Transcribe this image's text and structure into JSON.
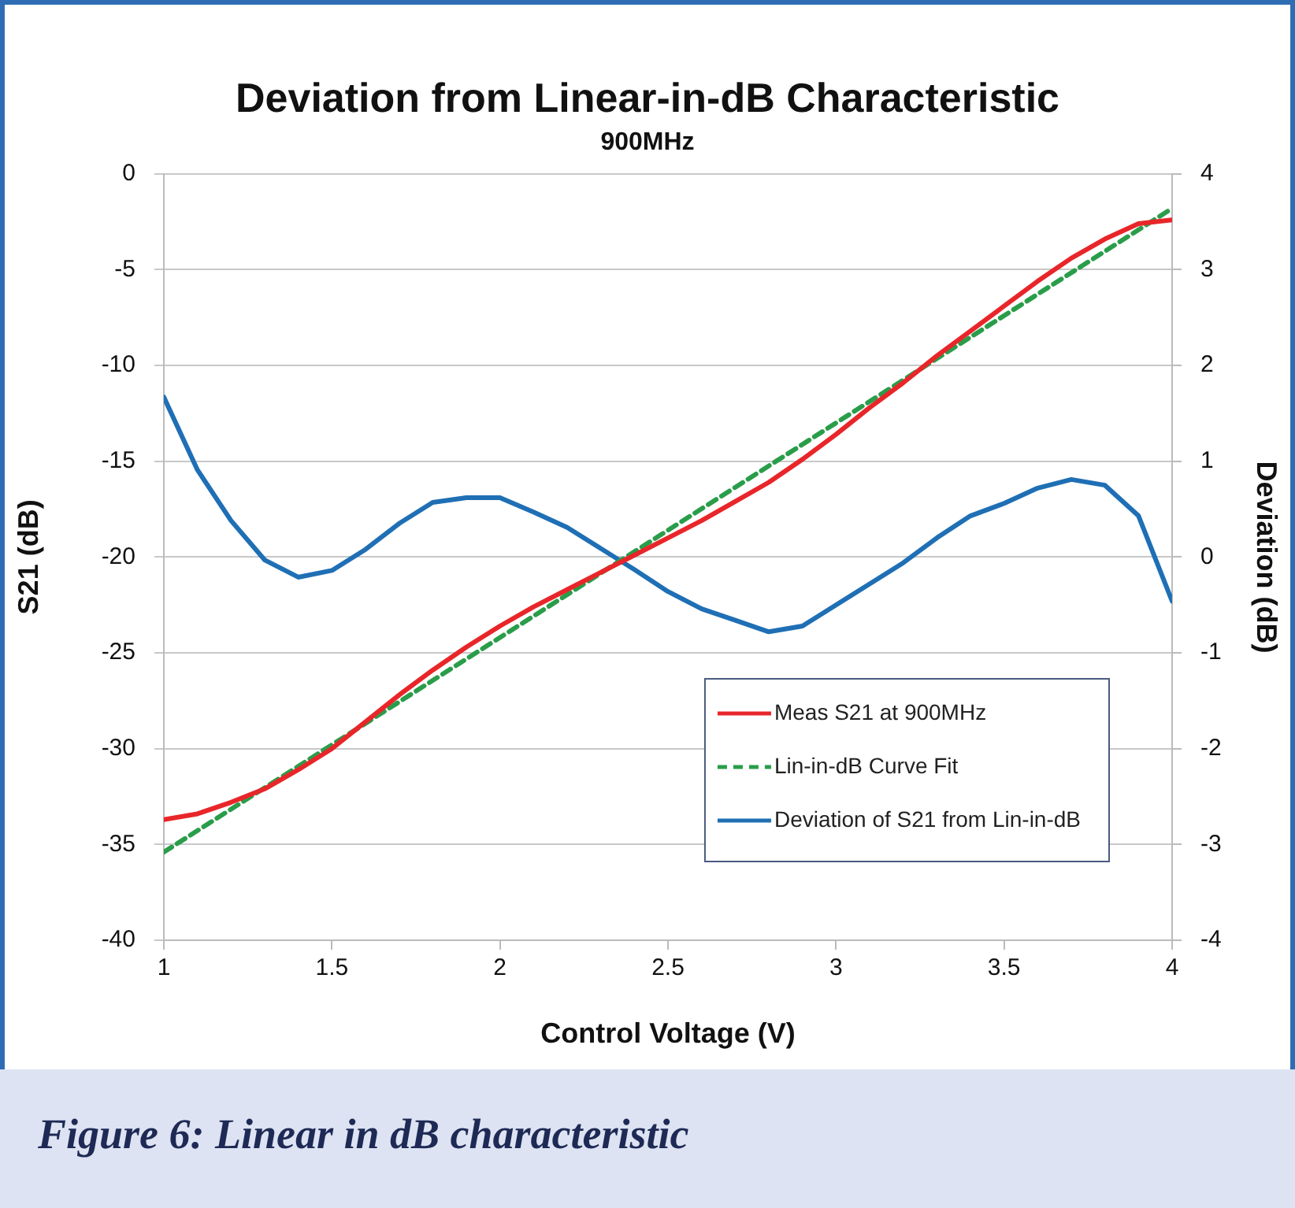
{
  "chart_data": {
    "type": "line",
    "title": "Deviation from Linear-in-dB Characteristic",
    "subtitle": "900MHz",
    "xlabel": "Control Voltage (V)",
    "ylabel": "S21 (dB)",
    "y2label": "Deviation (dB)",
    "x": [
      1.0,
      1.1,
      1.2,
      1.3,
      1.4,
      1.5,
      1.6,
      1.7,
      1.8,
      1.9,
      2.0,
      2.1,
      2.2,
      2.3,
      2.4,
      2.5,
      2.6,
      2.7,
      2.8,
      2.9,
      3.0,
      3.1,
      3.2,
      3.3,
      3.4,
      3.5,
      3.6,
      3.7,
      3.8,
      3.9,
      4.0
    ],
    "series": [
      {
        "name": "Meas S21 at 900MHz",
        "color": "#e8262a",
        "values": [
          -33.7,
          -33.4,
          -32.8,
          -32.1,
          -31.1,
          -30.0,
          -28.6,
          -27.2,
          -25.9,
          -24.7,
          -23.6,
          -22.6,
          -21.7,
          -20.8,
          -19.9,
          -19.0,
          -18.1,
          -17.1,
          -16.1,
          -14.9,
          -13.6,
          -12.2,
          -10.9,
          -9.5,
          -8.2,
          -6.9,
          -5.6,
          -4.4,
          -3.4,
          -2.6,
          -2.4
        ]
      },
      {
        "name": "Lin-in-dB Curve Fit",
        "color": "#2a9d4a",
        "line_style": "dashed",
        "x": [
          1,
          4
        ],
        "values": [
          -35.4,
          -1.8
        ]
      },
      {
        "name": "Deviation of S21 from Lin-in-dB",
        "color": "#1f6fb5",
        "axis": "y2",
        "values": [
          1.67,
          0.91,
          0.38,
          -0.03,
          -0.21,
          -0.14,
          0.08,
          0.35,
          0.57,
          0.62,
          0.62,
          0.47,
          0.31,
          0.09,
          -0.13,
          -0.36,
          -0.54,
          -0.66,
          -0.78,
          -0.72,
          -0.5,
          -0.28,
          -0.06,
          0.2,
          0.43,
          0.56,
          0.72,
          0.81,
          0.75,
          0.43,
          -0.46
        ]
      }
    ],
    "xlim": [
      1,
      4
    ],
    "xticks": [
      1,
      1.5,
      2,
      2.5,
      3,
      3.5,
      4
    ],
    "ylim": [
      -40,
      0
    ],
    "yticks": [
      -40,
      -35,
      -30,
      -25,
      -20,
      -15,
      -10,
      -5,
      0
    ],
    "y2lim": [
      -4,
      4
    ],
    "y2ticks": [
      -4,
      -3,
      -2,
      -1,
      0,
      1,
      2,
      3,
      4
    ],
    "grid": "y",
    "legend": "bottom right",
    "marker": "none",
    "line_style": "solid",
    "annotations": [
      "Figure 6: Linear in dB characteristic"
    ]
  }
}
